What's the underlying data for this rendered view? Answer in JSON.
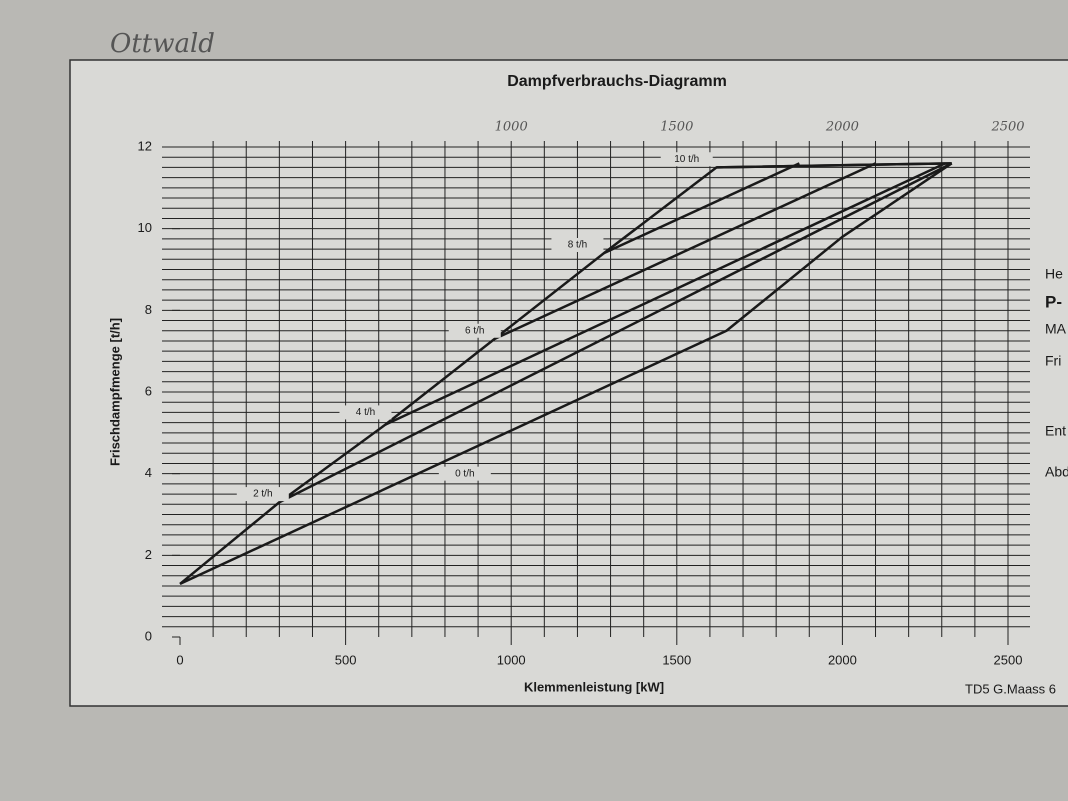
{
  "chart_data": {
    "type": "line",
    "title": "Dampfverbrauchs-Diagramm",
    "x_label": "Klemmenleistung [kW]",
    "y_label": "Frischdampfmenge [t/h]",
    "xlim": [
      0,
      2500
    ],
    "ylim": [
      0,
      12
    ],
    "xticks": [
      0,
      500,
      1000,
      1500,
      2000,
      2500
    ],
    "yticks": [
      0,
      2,
      4,
      6,
      8,
      10,
      12
    ],
    "minor_grid": {
      "x": 100,
      "y": 0.25
    },
    "handwritten_xticks": [
      1000,
      1500,
      2000,
      2500
    ],
    "color": "#1a1a1a",
    "series": [
      {
        "x": [
          0,
          300,
          620,
          950,
          1280,
          1620,
          2330
        ],
        "values": [
          1.3,
          3.3,
          5.2,
          7.3,
          9.4,
          11.5,
          11.6
        ]
      },
      {
        "name": "0 t/h",
        "x": [
          0,
          1650,
          2000,
          2330
        ],
        "values": [
          1.3,
          7.5,
          9.8,
          11.6
        ]
      },
      {
        "name": "2 t/h",
        "x": [
          300,
          2330
        ],
        "values": [
          3.3,
          11.6
        ]
      },
      {
        "name": "4 t/h",
        "x": [
          620,
          2310
        ],
        "values": [
          5.2,
          11.6
        ]
      },
      {
        "name": "6 t/h",
        "x": [
          950,
          2100
        ],
        "values": [
          7.3,
          11.6
        ]
      },
      {
        "name": "8 t/h",
        "x": [
          1280,
          1870
        ],
        "values": [
          9.4,
          11.6
        ]
      },
      {
        "name": "10 t/h",
        "x": [
          1620,
          2330
        ],
        "values": [
          11.5,
          11.6
        ]
      }
    ]
  },
  "handwriting": "Ottwald",
  "side_texts": [
    "He",
    "P-",
    "MA",
    "Fri",
    "Ent",
    "Abd"
  ],
  "footer": "TD5 G.Maass 6"
}
